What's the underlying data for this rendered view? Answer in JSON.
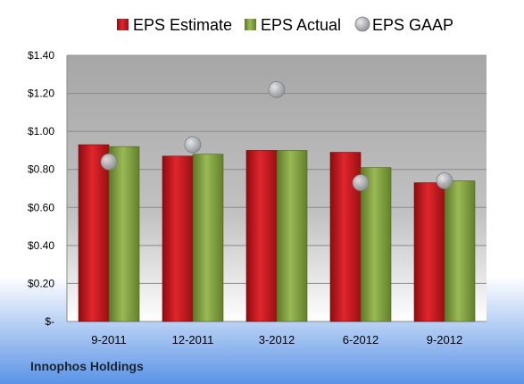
{
  "chart_data": {
    "type": "bar",
    "categories": [
      "9-2011",
      "12-2011",
      "3-2012",
      "6-2012",
      "9-2012"
    ],
    "series": [
      {
        "name": "EPS Estimate",
        "values": [
          0.93,
          0.87,
          0.9,
          0.89,
          0.73
        ],
        "color": "#c0141a"
      },
      {
        "name": "EPS Actual",
        "values": [
          0.92,
          0.88,
          0.9,
          0.81,
          0.74
        ],
        "color": "#7e9b3a"
      }
    ],
    "points": {
      "name": "EPS GAAP",
      "values": [
        0.84,
        0.93,
        1.22,
        0.73,
        0.74
      ],
      "color": "#a9adb2"
    },
    "ylim": [
      0,
      1.4
    ],
    "yticks": [
      0,
      0.2,
      0.4,
      0.6,
      0.8,
      1.0,
      1.2,
      1.4
    ],
    "ytick_labels": [
      "$-",
      "$0.20",
      "$0.40",
      "$0.60",
      "$0.80",
      "$1.00",
      "$1.20",
      "$1.40"
    ],
    "grid": true,
    "legend_position": "top"
  },
  "footer": {
    "company": "Innophos Holdings"
  }
}
